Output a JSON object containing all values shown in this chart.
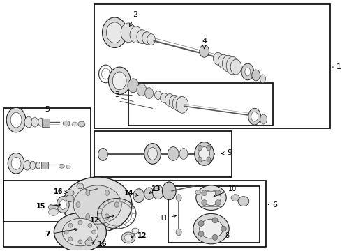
{
  "bg_color": "#ffffff",
  "border_color": "#000000",
  "text_color": "#000000",
  "fig_width": 4.9,
  "fig_height": 3.6,
  "dpi": 100,
  "boxes": {
    "b1": [
      0.275,
      0.51,
      0.97,
      0.98
    ],
    "b5": [
      0.025,
      0.39,
      0.265,
      0.69
    ],
    "b9": [
      0.275,
      0.33,
      0.68,
      0.5
    ],
    "b6": [
      0.025,
      0.01,
      0.78,
      0.36
    ],
    "b6inner": [
      0.49,
      0.04,
      0.74,
      0.29
    ]
  },
  "label_color": "#000000",
  "line_color": "#222222",
  "part_fill": "#e8e8e8",
  "part_dark": "#999999",
  "part_mid": "#cccccc"
}
